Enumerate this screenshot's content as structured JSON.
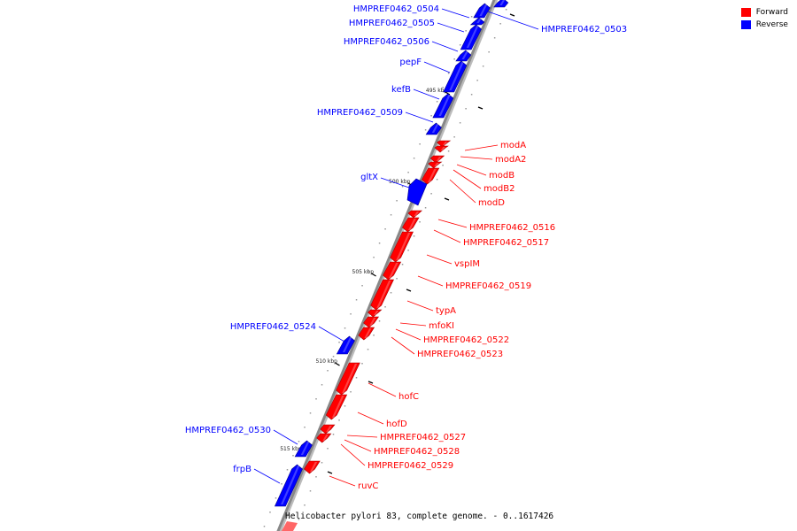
{
  "caption": "Helicobacter pylori 83, complete genome. - 0..1617426",
  "legend": [
    {
      "label": "Forward",
      "color": "#ff0000"
    },
    {
      "label": "Reverse",
      "color": "#0000ff"
    }
  ],
  "colors": {
    "forward": "#ff0000",
    "reverse": "#0000ff",
    "backbone": "#888888"
  },
  "scale": {
    "unit": "kbp",
    "ticks": [
      "495 kbp",
      "500 kbp",
      "505 kbp",
      "510 kbp",
      "515 kbp"
    ]
  },
  "genes": [
    {
      "name": "HMPREF0462_0503",
      "strand": "reverse"
    },
    {
      "name": "HMPREF0462_0504",
      "strand": "reverse"
    },
    {
      "name": "HMPREF0462_0505",
      "strand": "reverse"
    },
    {
      "name": "HMPREF0462_0506",
      "strand": "reverse"
    },
    {
      "name": "pepF",
      "strand": "reverse"
    },
    {
      "name": "kefB",
      "strand": "reverse"
    },
    {
      "name": "HMPREF0462_0509",
      "strand": "reverse"
    },
    {
      "name": "modA",
      "strand": "forward"
    },
    {
      "name": "modA2",
      "strand": "forward"
    },
    {
      "name": "modB",
      "strand": "forward"
    },
    {
      "name": "modB2",
      "strand": "forward"
    },
    {
      "name": "modD",
      "strand": "forward"
    },
    {
      "name": "gltX",
      "strand": "reverse"
    },
    {
      "name": "HMPREF0462_0516",
      "strand": "forward"
    },
    {
      "name": "HMPREF0462_0517",
      "strand": "forward"
    },
    {
      "name": "vspIM",
      "strand": "forward"
    },
    {
      "name": "HMPREF0462_0519",
      "strand": "forward"
    },
    {
      "name": "typA",
      "strand": "forward"
    },
    {
      "name": "mfoKI",
      "strand": "forward"
    },
    {
      "name": "HMPREF0462_0522",
      "strand": "forward"
    },
    {
      "name": "HMPREF0462_0523",
      "strand": "forward"
    },
    {
      "name": "HMPREF0462_0524",
      "strand": "reverse"
    },
    {
      "name": "hofC",
      "strand": "forward"
    },
    {
      "name": "hofD",
      "strand": "forward"
    },
    {
      "name": "HMPREF0462_0527",
      "strand": "forward"
    },
    {
      "name": "HMPREF0462_0528",
      "strand": "forward"
    },
    {
      "name": "HMPREF0462_0529",
      "strand": "forward"
    },
    {
      "name": "HMPREF0462_0530",
      "strand": "reverse"
    },
    {
      "name": "frpB",
      "strand": "reverse"
    },
    {
      "name": "ruvC",
      "strand": "forward"
    }
  ]
}
